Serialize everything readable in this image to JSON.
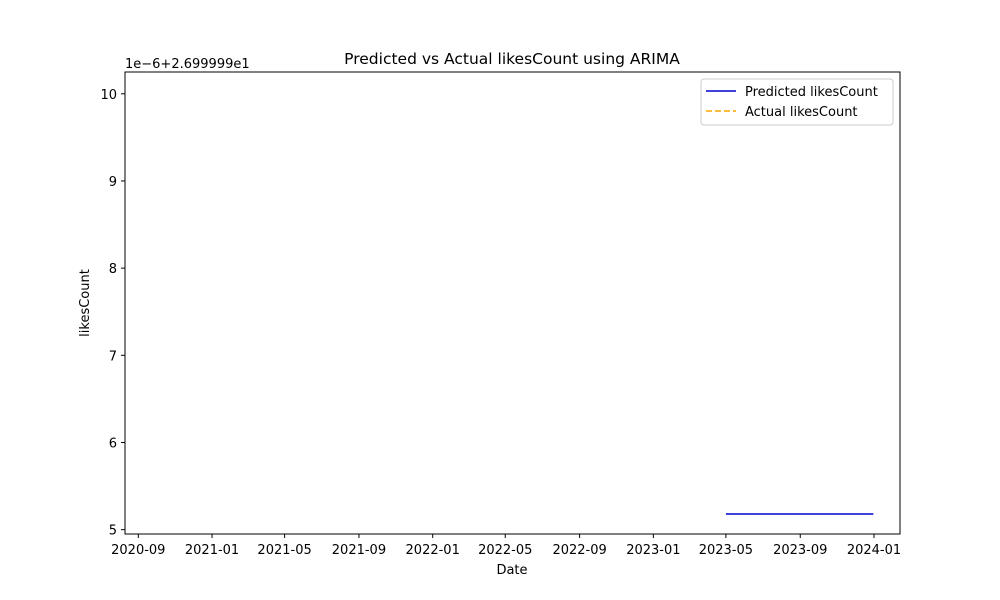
{
  "chart_data": {
    "type": "line",
    "title": "Predicted vs Actual likesCount using ARIMA",
    "xlabel": "Date",
    "ylabel": "likesCount",
    "offset_text": "1e−6+2.699999e1",
    "x_ticks": [
      "2020-09",
      "2021-01",
      "2021-05",
      "2021-09",
      "2022-01",
      "2022-05",
      "2022-09",
      "2023-01",
      "2023-05",
      "2023-09",
      "2024-01"
    ],
    "y_ticks": [
      "5",
      "6",
      "7",
      "8",
      "9",
      "10"
    ],
    "xlim": [
      "2020-08-10",
      "2024-02-13"
    ],
    "ylim": [
      4.95,
      10.25
    ],
    "y_scale": "offset 1e-6 + 26.99999",
    "grid": false,
    "legend_position": "upper right",
    "series": [
      {
        "name": "Predicted likesCount",
        "color": "#0000cd",
        "style": "solid",
        "x": [
          "2023-05-01",
          "2023-12-31"
        ],
        "values": [
          5.18,
          5.18
        ]
      },
      {
        "name": "Actual likesCount",
        "color": "#ffa500",
        "style": "dashed",
        "x": [],
        "values": []
      }
    ]
  }
}
